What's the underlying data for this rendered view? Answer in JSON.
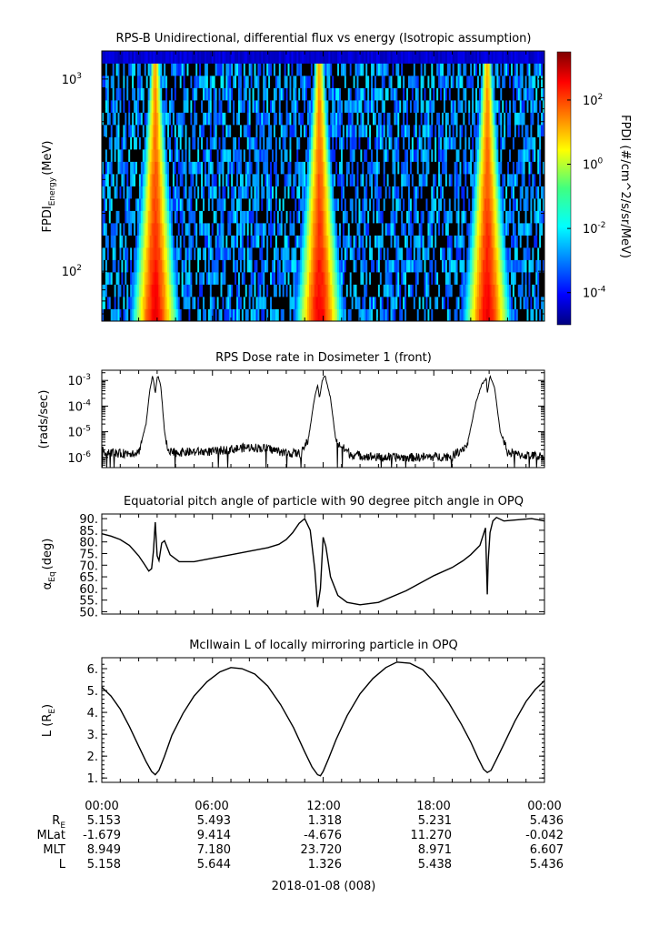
{
  "chart_data": [
    {
      "type": "heatmap",
      "title": "RPS-B  Unidirectional, differential flux vs energy (Isotropic assumption)",
      "ylabel_main": "FPDI",
      "ylabel_sub": "Energy",
      "ylabel_unit": "(MeV)",
      "yscale": "log",
      "ylim": [
        55,
        1400
      ],
      "y_ticks": [
        {
          "base": "10",
          "exp": "2",
          "value": 100
        },
        {
          "base": "10",
          "exp": "3",
          "value": 1000
        }
      ],
      "xlim_hours": [
        0,
        24
      ],
      "colorbar": {
        "label": "FPDI (#/cm^2/s/sr/MeV)",
        "scale": "log",
        "range_log10": [
          -5,
          3.5
        ],
        "ticks": [
          {
            "base": "10",
            "exp": "2",
            "log10": 2
          },
          {
            "base": "10",
            "exp": "0",
            "log10": 0
          },
          {
            "base": "10",
            "exp": "-2",
            "log10": -2
          },
          {
            "base": "10",
            "exp": "-4",
            "log10": -4
          }
        ]
      },
      "belt_crossings_hours": [
        2.9,
        11.8,
        20.9
      ],
      "colors": {
        "low": "#00007f",
        "high": "#ff0000",
        "no_data": "#000000"
      }
    },
    {
      "type": "line",
      "title": "RPS  Dose rate in Dosimeter 1 (front)",
      "ylabel": "(rads/sec)",
      "yscale": "log",
      "ylim": [
        4e-07,
        0.0025
      ],
      "y_ticks": [
        {
          "base": "10",
          "exp": "-3",
          "value": 0.001
        },
        {
          "base": "10",
          "exp": "-4",
          "value": 0.0001
        },
        {
          "base": "10",
          "exp": "-5",
          "value": 1e-05
        },
        {
          "base": "10",
          "exp": "-6",
          "value": 1e-06
        }
      ],
      "series": [
        {
          "x": [
            0,
            1.0,
            2.0,
            2.4,
            2.6,
            2.75,
            2.8,
            2.9,
            3.0,
            3.05,
            3.2,
            3.4,
            3.6,
            4.5,
            6.0,
            8.0,
            9.0,
            10.0,
            10.8,
            11.2,
            11.5,
            11.7,
            11.8,
            11.95,
            12.1,
            12.4,
            12.7,
            13.5,
            15.0,
            17.0,
            19.0,
            19.8,
            20.3,
            20.6,
            20.85,
            20.9,
            21.05,
            21.3,
            21.6,
            22.0,
            22.4,
            23.0,
            24.0
          ],
          "y": [
            1.8e-06,
            1.4e-06,
            1.6e-06,
            2e-05,
            0.0004,
            0.0015,
            0.001,
            0.0003,
            0.0013,
            0.0015,
            0.0006,
            1e-05,
            1.5e-06,
            1.6e-06,
            1.7e-06,
            2.5e-06,
            2.2e-06,
            1.5e-06,
            1.4e-06,
            5e-06,
            0.00015,
            0.0007,
            0.0002,
            0.001,
            0.0016,
            0.0002,
            4e-06,
            1.3e-06,
            1e-06,
            1e-06,
            1.1e-06,
            3e-06,
            0.00015,
            0.0007,
            0.0012,
            0.0003,
            0.0015,
            0.0005,
            1e-05,
            1.6e-06,
            1.3e-06,
            1.2e-06,
            1.1e-06
          ]
        }
      ]
    },
    {
      "type": "line",
      "title": "Equatorial pitch angle of particle with 90 degree pitch angle in OPQ",
      "ylabel_main": "α",
      "ylabel_sub": "Eq",
      "ylabel_unit": "(deg)",
      "ylim": [
        49,
        92
      ],
      "y_ticks": [
        50,
        55,
        60,
        65,
        70,
        75,
        80,
        85,
        90
      ],
      "series": [
        {
          "x": [
            0,
            0.5,
            1.0,
            1.5,
            2.0,
            2.3,
            2.55,
            2.7,
            2.8,
            2.9,
            3.0,
            3.1,
            3.25,
            3.4,
            3.7,
            4.2,
            5.0,
            6.0,
            7.0,
            8.0,
            9.0,
            9.6,
            10.0,
            10.35,
            10.7,
            11.0,
            11.3,
            11.55,
            11.7,
            11.85,
            12.0,
            12.15,
            12.4,
            12.8,
            13.3,
            14.0,
            15.0,
            16.5,
            18.0,
            19.0,
            19.6,
            20.0,
            20.5,
            20.8,
            20.9,
            20.95,
            21.05,
            21.2,
            21.4,
            21.8,
            22.5,
            23.3,
            24.0
          ],
          "y": [
            83.5,
            82.5,
            81.0,
            78.5,
            74.0,
            70.5,
            67.5,
            68.5,
            76.0,
            88.5,
            74.0,
            72.0,
            79.5,
            80.5,
            74.5,
            71.5,
            71.5,
            73.0,
            74.5,
            76.0,
            77.5,
            79.0,
            81.0,
            84.0,
            88.0,
            90.0,
            85.0,
            68.0,
            52.0,
            60.0,
            82.0,
            78.0,
            65.0,
            57.0,
            54.0,
            53.0,
            54.0,
            59.0,
            65.5,
            69.0,
            72.0,
            74.5,
            78.5,
            86.0,
            57.5,
            72.0,
            84.0,
            89.0,
            90.5,
            89.0,
            89.5,
            90.0,
            89.0
          ]
        }
      ]
    },
    {
      "type": "line",
      "title": "McIlwain L of locally mirroring particle in OPQ",
      "ylabel_main": "L (R",
      "ylabel_sub": "E",
      "ylabel_end": ")",
      "ylim": [
        0.8,
        6.5
      ],
      "y_ticks": [
        1,
        2,
        3,
        4,
        5,
        6
      ],
      "y_tick_labels": [
        "1.",
        "2.",
        "3.",
        "4.",
        "5.",
        "6."
      ],
      "series": [
        {
          "x": [
            0,
            0.5,
            1.0,
            1.5,
            2.0,
            2.4,
            2.7,
            2.9,
            3.1,
            3.4,
            3.8,
            4.4,
            5.0,
            5.7,
            6.4,
            7.0,
            7.6,
            8.3,
            9.0,
            9.7,
            10.4,
            11.0,
            11.4,
            11.7,
            11.85,
            12.0,
            12.3,
            12.7,
            13.3,
            14.0,
            14.7,
            15.4,
            16.0,
            16.7,
            17.4,
            18.1,
            18.8,
            19.5,
            20.0,
            20.4,
            20.7,
            20.9,
            21.1,
            21.4,
            21.8,
            22.4,
            23.0,
            23.5,
            24.0
          ],
          "y": [
            5.15,
            4.75,
            4.15,
            3.35,
            2.45,
            1.75,
            1.3,
            1.15,
            1.35,
            2.0,
            2.95,
            3.95,
            4.75,
            5.4,
            5.85,
            6.05,
            6.0,
            5.75,
            5.2,
            4.35,
            3.3,
            2.2,
            1.5,
            1.15,
            1.1,
            1.3,
            1.9,
            2.75,
            3.85,
            4.85,
            5.55,
            6.05,
            6.3,
            6.25,
            5.95,
            5.3,
            4.45,
            3.45,
            2.65,
            1.9,
            1.4,
            1.25,
            1.35,
            1.85,
            2.55,
            3.6,
            4.5,
            5.05,
            5.45
          ]
        }
      ]
    }
  ],
  "x_axis": {
    "tick_labels": [
      "00:00",
      "06:00",
      "12:00",
      "18:00",
      "00:00"
    ],
    "ephemeris_rows": [
      {
        "label_main": "R",
        "label_sub": "E",
        "values": [
          "5.153",
          "5.493",
          "1.318",
          "5.231",
          "5.436"
        ]
      },
      {
        "label_main": "MLat",
        "label_sub": "",
        "values": [
          "-1.679",
          "9.414",
          "-4.676",
          "11.270",
          "-0.042"
        ]
      },
      {
        "label_main": "MLT",
        "label_sub": "",
        "values": [
          "8.949",
          "7.180",
          "23.720",
          "8.971",
          "6.607"
        ]
      },
      {
        "label_main": "L",
        "label_sub": "",
        "values": [
          "5.158",
          "5.644",
          "1.326",
          "5.438",
          "5.436"
        ]
      }
    ],
    "date_label": "2018-01-08 (008)"
  }
}
